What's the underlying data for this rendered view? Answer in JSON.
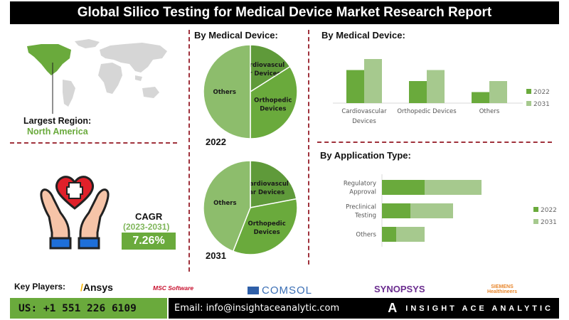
{
  "header": {
    "title": "Global Silico Testing for Medical Device Market Research Report"
  },
  "region": {
    "label": "Largest Region:",
    "value": "North America",
    "highlight_color": "#6aaa3c"
  },
  "cagr": {
    "title": "CAGR",
    "range": "(2023-2031)",
    "value": "7.26%"
  },
  "pies": {
    "title": "By Medical Device:",
    "p2022": {
      "year": "2022"
    },
    "p2031": {
      "year": "2031"
    }
  },
  "bar_section": {
    "title": "By Medical Device:"
  },
  "hbar_section": {
    "title": "By Application Type:"
  },
  "key_players": {
    "label": "Key Players:",
    "logos": [
      "Ansys",
      "MSC Software",
      "COMSOL",
      "SYNOPSYS",
      "SIEMENS Healthineers"
    ]
  },
  "footer": {
    "phone": "US: +1 551 226 6109",
    "email": "Email: info@insightaceanalytic.com",
    "brand": "INSIGHT ACE ANALYTIC"
  },
  "colors": {
    "dark_green": "#5f9a3a",
    "mid_green": "#6aaa3c",
    "light_green": "#a6c98e",
    "pie_light": "#8dbd6c",
    "divider": "#a0323c"
  },
  "chart_data": [
    {
      "type": "pie",
      "title": "By Medical Device: 2022",
      "categories": [
        "Cardiovascular Devices",
        "Orthopedic Devices",
        "Others"
      ],
      "values": [
        16,
        34,
        50
      ]
    },
    {
      "type": "pie",
      "title": "By Medical Device: 2031",
      "categories": [
        "Cardiovascular Devices",
        "Orthopedic Devices",
        "Others"
      ],
      "values": [
        22,
        34,
        44
      ]
    },
    {
      "type": "bar",
      "title": "By Medical Device:",
      "categories": [
        "Cardiovascular Devices",
        "Orthopedic Devices",
        "Others"
      ],
      "series": [
        {
          "name": "2022",
          "values": [
            3,
            2,
            1
          ]
        },
        {
          "name": "2031",
          "values": [
            4,
            3,
            2
          ]
        }
      ],
      "ylim": [
        0,
        4.5
      ],
      "legend": "right",
      "grid": false
    },
    {
      "type": "bar",
      "orientation": "horizontal-stacked",
      "title": "By Application Type:",
      "categories": [
        "Regulatory Approval",
        "Preclinical Testing",
        "Others"
      ],
      "series": [
        {
          "name": "2022",
          "values": [
            3,
            2,
            1
          ]
        },
        {
          "name": "2031",
          "values": [
            4,
            3,
            2
          ]
        }
      ],
      "legend": "right",
      "grid": false
    }
  ]
}
